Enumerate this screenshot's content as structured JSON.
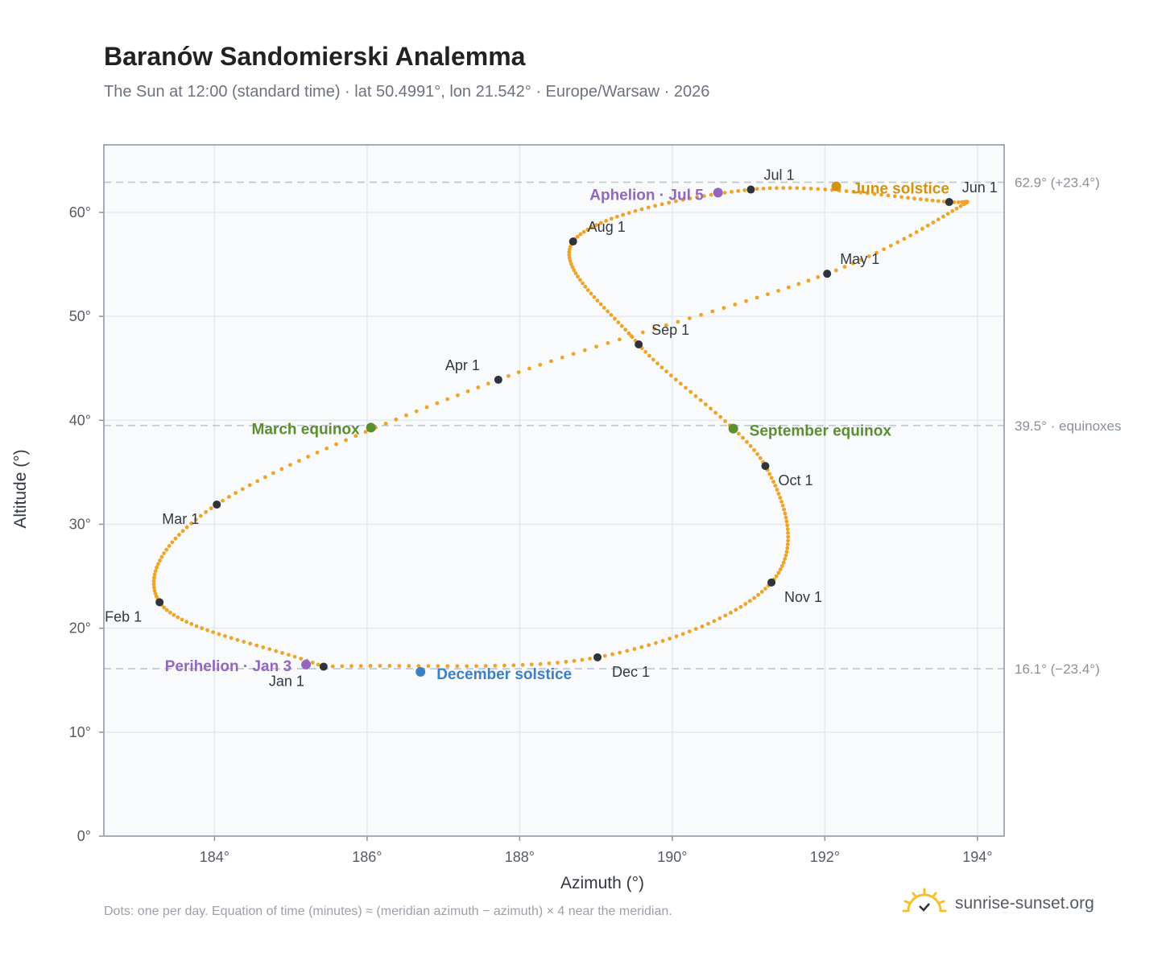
{
  "header": {
    "title": "Baranów Sandomierski Analemma",
    "subtitle": "The Sun at 12:00 (standard time) · lat 50.4991°, lon 21.542° · Europe/Warsaw · 2026"
  },
  "footer": {
    "note": "Dots: one per day. Equation of time (minutes) ≈ (meridian azimuth − azimuth) × 4 near the meridian.",
    "brand": "sunrise-sunset.org",
    "brand_icon": "sun-logo-icon"
  },
  "colors": {
    "curve": "#f0a326",
    "month_marker": "#2f343b",
    "equinox": "#5a8f2f",
    "june_solstice": "#d4930e",
    "december_solstice": "#3b7fc4",
    "apsis": "#9467bd",
    "plot_bg": "#f8fafc",
    "grid": "#e5e9ee",
    "reference_line": "#c3c9d1",
    "axis_text": "#555b63"
  },
  "chart_data": {
    "type": "scatter",
    "xlabel": "Azimuth (°)",
    "ylabel": "Altitude (°)",
    "xlim": [
      182.55,
      194.35
    ],
    "ylim": [
      0,
      66.5
    ],
    "x_ticks": [
      184,
      186,
      188,
      190,
      192,
      194
    ],
    "x_tick_labels": [
      "184°",
      "186°",
      "188°",
      "190°",
      "192°",
      "194°"
    ],
    "y_ticks": [
      0,
      10,
      20,
      30,
      40,
      50,
      60
    ],
    "y_tick_labels": [
      "0°",
      "10°",
      "20°",
      "30°",
      "40°",
      "50°",
      "60°"
    ],
    "grid": true,
    "reference_lines": [
      {
        "y": 62.9,
        "label": "62.9° (+23.4°)"
      },
      {
        "y": 39.5,
        "label": "39.5° · equinoxes"
      },
      {
        "y": 16.1,
        "label": "16.1° (−23.4°)"
      }
    ],
    "daily_path": [
      {
        "day": 1,
        "az": 185.43,
        "alt": 16.3
      },
      {
        "day": 32,
        "az": 183.28,
        "alt": 22.5
      },
      {
        "day": 60,
        "az": 184.03,
        "alt": 31.9
      },
      {
        "day": 91,
        "az": 187.72,
        "alt": 43.9
      },
      {
        "day": 121,
        "az": 192.03,
        "alt": 54.1
      },
      {
        "day": 142,
        "az": 193.78,
        "alt": 60.6
      },
      {
        "day": 152,
        "az": 193.63,
        "alt": 61.0
      },
      {
        "day": 182,
        "az": 191.03,
        "alt": 62.2
      },
      {
        "day": 213,
        "az": 188.7,
        "alt": 57.2
      },
      {
        "day": 244,
        "az": 189.56,
        "alt": 47.3
      },
      {
        "day": 274,
        "az": 191.22,
        "alt": 35.6
      },
      {
        "day": 305,
        "az": 191.3,
        "alt": 24.4
      },
      {
        "day": 335,
        "az": 189.02,
        "alt": 17.2
      },
      {
        "day": 365,
        "az": 185.43,
        "alt": 16.3
      }
    ],
    "month_markers": [
      {
        "label": "Jan 1",
        "az": 185.43,
        "alt": 16.3
      },
      {
        "label": "Feb 1",
        "az": 183.28,
        "alt": 22.5
      },
      {
        "label": "Mar 1",
        "az": 184.03,
        "alt": 31.9
      },
      {
        "label": "Apr 1",
        "az": 187.72,
        "alt": 43.9
      },
      {
        "label": "May 1",
        "az": 192.03,
        "alt": 54.1
      },
      {
        "label": "Jun 1",
        "az": 193.63,
        "alt": 61.0
      },
      {
        "label": "Jul 1",
        "az": 191.03,
        "alt": 62.2
      },
      {
        "label": "Aug 1",
        "az": 188.7,
        "alt": 57.2
      },
      {
        "label": "Sep 1",
        "az": 189.56,
        "alt": 47.3
      },
      {
        "label": "Oct 1",
        "az": 191.22,
        "alt": 35.6
      },
      {
        "label": "Nov 1",
        "az": 191.3,
        "alt": 24.4
      },
      {
        "label": "Dec 1",
        "az": 189.02,
        "alt": 17.2
      }
    ],
    "events": [
      {
        "label": "March equinox",
        "az": 186.05,
        "alt": 39.3,
        "kind": "equinox"
      },
      {
        "label": "September equinox",
        "az": 190.8,
        "alt": 39.2,
        "kind": "equinox"
      },
      {
        "label": "June solstice",
        "az": 192.15,
        "alt": 62.5,
        "kind": "june_solstice"
      },
      {
        "label": "December solstice",
        "az": 186.7,
        "alt": 15.8,
        "kind": "december_solstice"
      },
      {
        "label": "Aphelion · Jul 5",
        "az": 190.6,
        "alt": 61.9,
        "kind": "apsis"
      },
      {
        "label": "Perihelion · Jan 3",
        "az": 185.2,
        "alt": 16.5,
        "kind": "apsis"
      }
    ]
  }
}
